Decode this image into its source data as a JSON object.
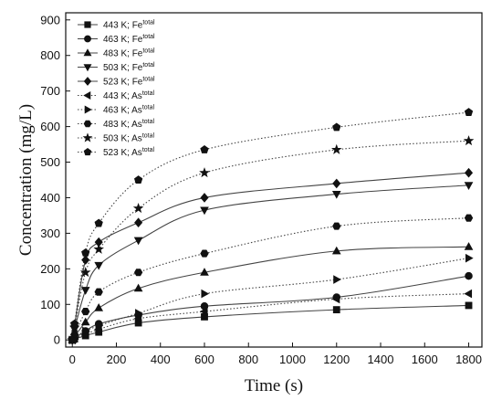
{
  "chart_data": {
    "type": "scatter",
    "xlabel": "Time (s)",
    "ylabel": "Concentration (mg/L)",
    "xlim": [
      -30,
      1860
    ],
    "ylim": [
      -20,
      920
    ],
    "xticks": [
      0,
      200,
      400,
      600,
      800,
      1000,
      1200,
      1400,
      1600,
      1800
    ],
    "yticks": [
      0,
      100,
      200,
      300,
      400,
      500,
      600,
      700,
      800,
      900
    ],
    "legend_position": "top-left",
    "fit_lines": true,
    "x": [
      0,
      10,
      60,
      120,
      300,
      600,
      1200,
      1800
    ],
    "series": [
      {
        "name": "443 K; Fe",
        "sup": "total",
        "marker": "square",
        "line": "solid",
        "values": [
          0,
          3,
          12,
          22,
          48,
          65,
          85,
          97
        ]
      },
      {
        "name": "463 K; Fe",
        "sup": "total",
        "marker": "circle",
        "line": "solid",
        "values": [
          0,
          5,
          25,
          45,
          70,
          95,
          120,
          180
        ]
      },
      {
        "name": "483 K; Fe",
        "sup": "total",
        "marker": "triangle-up",
        "line": "solid",
        "values": [
          0,
          10,
          50,
          90,
          145,
          190,
          250,
          262
        ]
      },
      {
        "name": "503 K; Fe",
        "sup": "total",
        "marker": "triangle-down",
        "line": "solid",
        "values": [
          0,
          30,
          140,
          210,
          280,
          365,
          410,
          435
        ]
      },
      {
        "name": "523 K; Fe",
        "sup": "total",
        "marker": "diamond",
        "line": "solid",
        "values": [
          0,
          40,
          225,
          275,
          330,
          400,
          440,
          470
        ]
      },
      {
        "name": "443 K; As",
        "sup": "total",
        "marker": "triangle-left",
        "line": "dotted",
        "values": [
          0,
          5,
          15,
          30,
          60,
          80,
          115,
          130
        ]
      },
      {
        "name": "463 K; As",
        "sup": "total",
        "marker": "triangle-right",
        "line": "dotted",
        "values": [
          0,
          8,
          25,
          40,
          75,
          130,
          170,
          230
        ]
      },
      {
        "name": "483 K; As",
        "sup": "total",
        "marker": "hexagon",
        "line": "dotted",
        "values": [
          0,
          15,
          80,
          135,
          190,
          243,
          320,
          343
        ]
      },
      {
        "name": "503 K; As",
        "sup": "total",
        "marker": "star",
        "line": "dotted",
        "values": [
          0,
          35,
          190,
          255,
          370,
          470,
          535,
          560
        ]
      },
      {
        "name": "523 K; As",
        "sup": "total",
        "marker": "pentagon",
        "line": "dotted",
        "values": [
          0,
          45,
          245,
          328,
          450,
          535,
          598,
          640
        ]
      }
    ]
  }
}
